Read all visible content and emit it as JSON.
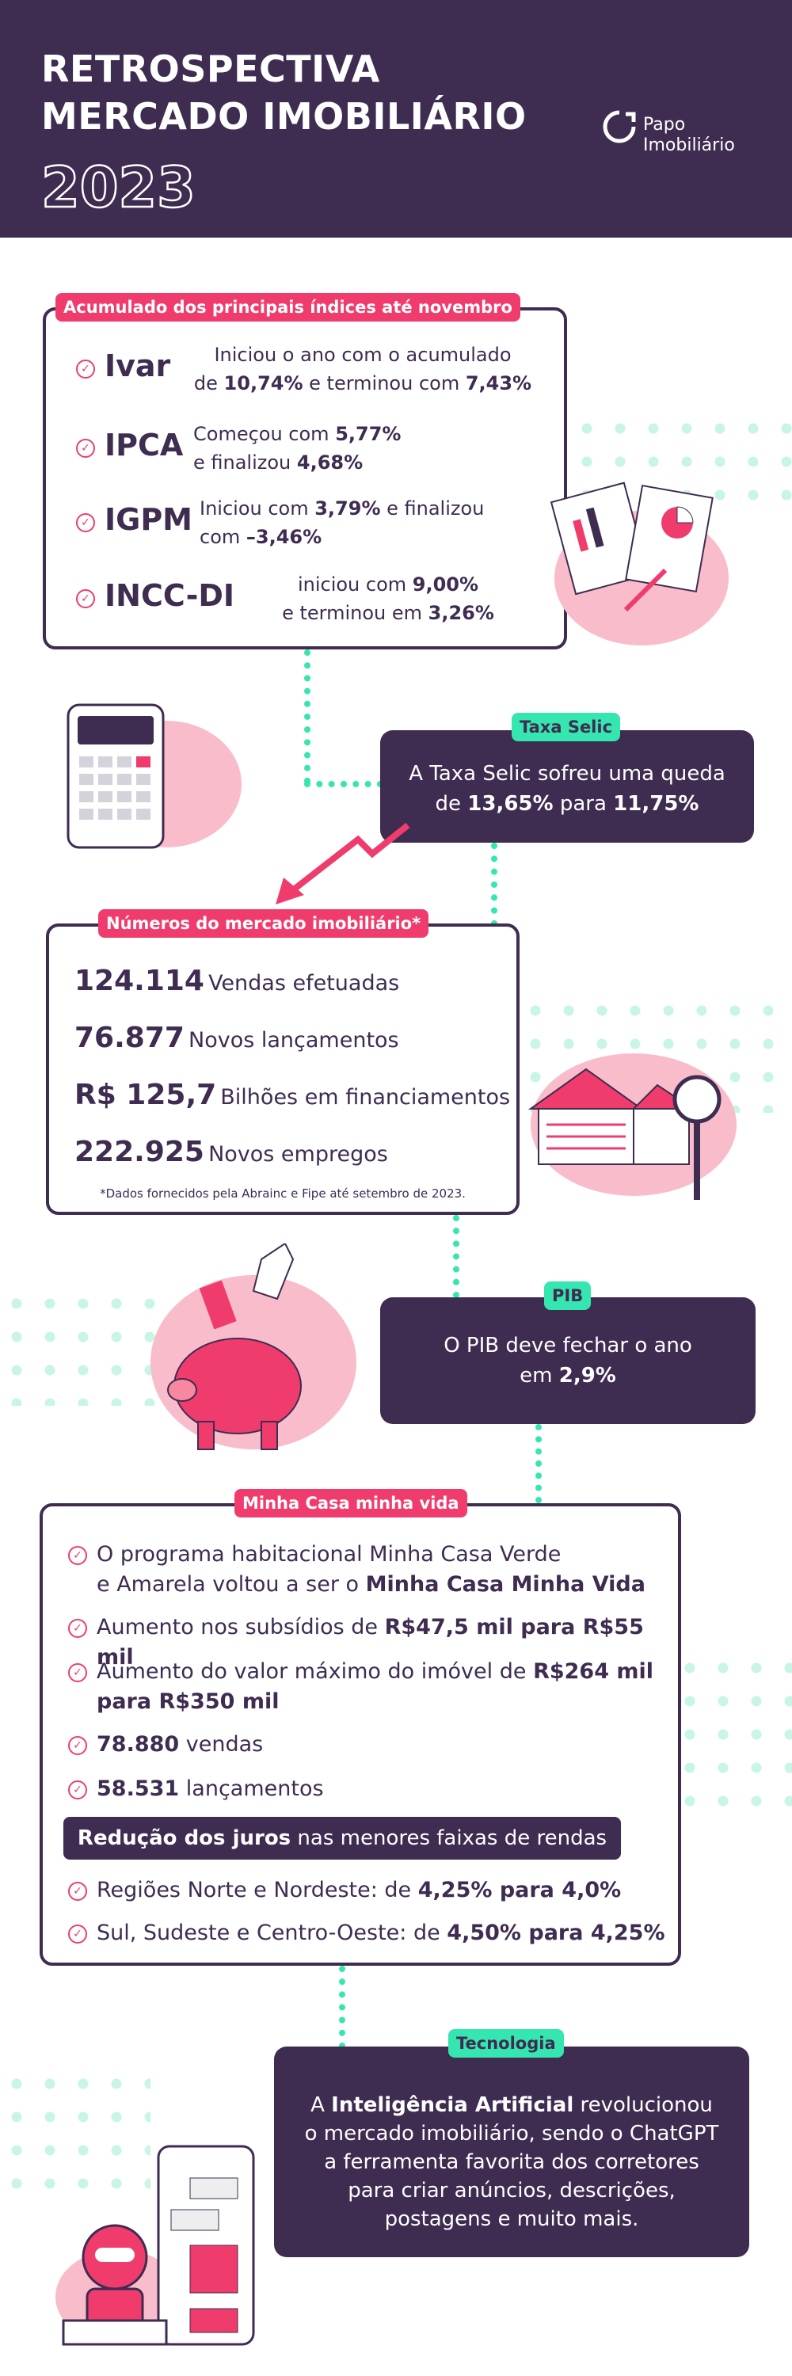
{
  "header": {
    "line1": "RETROSPECTIVA",
    "line2": "MERCADO IMOBILIÁRIO",
    "year": "2023",
    "logo_line1": "Papo",
    "logo_line2": "Imobiliário"
  },
  "indices": {
    "tag": "Acumulado dos principais índices até novembro",
    "items": [
      {
        "name": "Ivar",
        "t1": "Iniciou o ano com o acumulado",
        "t2a": "de ",
        "v1": "10,74%",
        "t2b": " e terminou com ",
        "v2": "7,43%"
      },
      {
        "name": "IPCA",
        "t1a": "Começou com ",
        "v1": "5,77%",
        "t2a": "e finalizou ",
        "v2": "4,68%"
      },
      {
        "name": "IGPM",
        "t1a": "Iniciou com ",
        "v1": "3,79%",
        "t1b": " e finalizou",
        "t2a": "com ",
        "v2": "–3,46%"
      },
      {
        "name": "INCC-DI",
        "t1a": "iniciou com ",
        "v1": "9,00%",
        "t2a": "e terminou em ",
        "v2": "3,26%"
      }
    ]
  },
  "selic": {
    "tag": "Taxa Selic",
    "t1": "A Taxa Selic sofreu uma queda",
    "t2a": "de ",
    "v1": "13,65%",
    "t2b": " para ",
    "v2": "11,75%"
  },
  "numbers": {
    "tag": "Números do mercado imobiliário*",
    "items": [
      {
        "value": "124.114",
        "label": "Vendas efetuadas"
      },
      {
        "value": "76.877",
        "label": "Novos lançamentos"
      },
      {
        "value": "R$ 125,7",
        "label": "Bilhões em financiamentos"
      },
      {
        "value": "222.925",
        "label": "Novos empregos"
      }
    ],
    "note": "*Dados fornecidos pela Abrainc e Fipe até setembro de 2023."
  },
  "pib": {
    "tag": "PIB",
    "t1": "O PIB deve fechar o ano",
    "t2a": "em ",
    "v1": "2,9%"
  },
  "mcmv": {
    "tag": "Minha Casa minha vida",
    "r1a": "O programa habitacional Minha Casa Verde",
    "r1b": "e Amarela voltou a ser o ",
    "r1v": "Minha Casa Minha Vida",
    "r2a": "Aumento nos subsídios de ",
    "r2v": "R$47,5 mil para R$55 mil",
    "r3a": "Aumento do valor máximo do imóvel de ",
    "r3v1": "R$264 mil",
    "r3v2": "para R$350 mil",
    "r4v": "78.880",
    "r4b": " vendas",
    "r5v": "58.531",
    "r5b": " lançamentos",
    "juros_a": "Redução dos juros",
    "juros_b": " nas menores faixas de rendas",
    "r6a": "Regiões Norte e Nordeste: de ",
    "r6v": "4,25% para 4,0%",
    "r7a": "Sul, Sudeste e Centro-Oeste: de ",
    "r7v": "4,50% para 4,25%"
  },
  "tech": {
    "tag": "Tecnologia",
    "l1a": "A ",
    "l1v": "Inteligência Artificial",
    "l1b": " revolucionou",
    "l2": "o mercado imobiliário, sendo o ChatGPT",
    "l3": "a ferramenta favorita dos corretores",
    "l4": "para criar anúncios, descrições,",
    "l5": "postagens e muito mais."
  },
  "colors": {
    "purple": "#3e2c51",
    "pink": "#f03c6c",
    "green": "#36e6b0"
  }
}
